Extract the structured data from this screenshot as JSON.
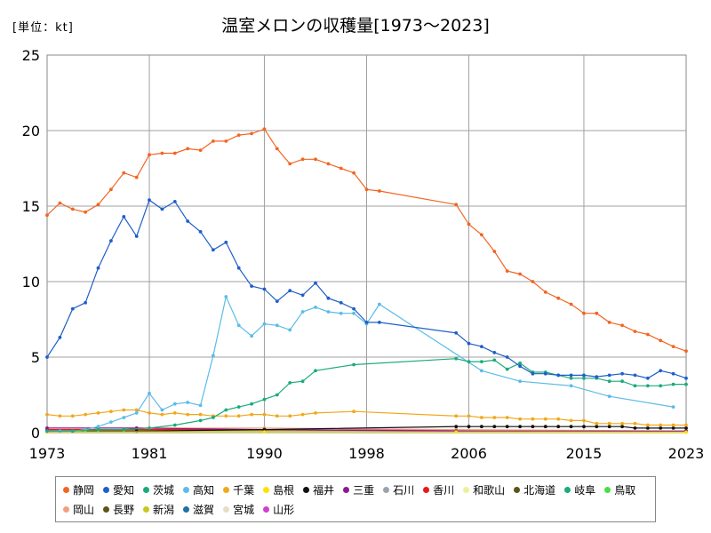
{
  "unit_label": "[単位：kt]",
  "chart_data": {
    "type": "line",
    "title": "温室メロンの収穫量[1973〜2023]",
    "xlabel": "",
    "ylabel": "",
    "xlim": [
      1973,
      2023
    ],
    "ylim": [
      0,
      25
    ],
    "x_ticks": [
      1973,
      1981,
      1990,
      1998,
      2006,
      2015,
      2023
    ],
    "y_ticks": [
      0,
      5,
      10,
      15,
      20,
      25
    ],
    "grid": true,
    "legend_position": "bottom",
    "series": [
      {
        "name": "静岡",
        "color": "#f26522",
        "x": [
          1973,
          1974,
          1975,
          1976,
          1977,
          1978,
          1979,
          1980,
          1981,
          1982,
          1983,
          1984,
          1985,
          1986,
          1987,
          1988,
          1989,
          1990,
          1991,
          1992,
          1993,
          1994,
          1995,
          1996,
          1997,
          1998,
          1999,
          2005,
          2006,
          2007,
          2008,
          2009,
          2010,
          2011,
          2012,
          2013,
          2014,
          2015,
          2016,
          2017,
          2018,
          2019,
          2020,
          2021,
          2022,
          2023
        ],
        "y": [
          14.4,
          15.2,
          14.8,
          14.6,
          15.1,
          16.1,
          17.2,
          16.9,
          18.4,
          18.5,
          18.5,
          18.8,
          18.7,
          19.3,
          19.3,
          19.7,
          19.8,
          20.1,
          18.8,
          17.8,
          18.1,
          18.1,
          17.8,
          17.5,
          17.2,
          16.1,
          16.0,
          15.1,
          13.8,
          13.1,
          12.0,
          10.7,
          10.5,
          10.0,
          9.3,
          8.9,
          8.5,
          7.9,
          7.9,
          7.3,
          7.1,
          6.7,
          6.5,
          6.1,
          5.7,
          5.4
        ]
      },
      {
        "name": "愛知",
        "color": "#1f5fc8",
        "x": [
          1973,
          1974,
          1975,
          1976,
          1977,
          1978,
          1979,
          1980,
          1981,
          1982,
          1983,
          1984,
          1985,
          1986,
          1987,
          1988,
          1989,
          1990,
          1991,
          1992,
          1993,
          1994,
          1995,
          1996,
          1997,
          1998,
          1999,
          2005,
          2006,
          2007,
          2008,
          2009,
          2010,
          2011,
          2012,
          2013,
          2014,
          2015,
          2016,
          2017,
          2018,
          2019,
          2020,
          2021,
          2022,
          2023
        ],
        "y": [
          5.0,
          6.3,
          8.2,
          8.6,
          10.9,
          12.7,
          14.3,
          13.0,
          15.4,
          14.8,
          15.3,
          14.0,
          13.3,
          12.1,
          12.6,
          10.9,
          9.7,
          9.5,
          8.7,
          9.4,
          9.1,
          9.9,
          8.9,
          8.6,
          8.2,
          7.3,
          7.3,
          6.6,
          5.9,
          5.7,
          5.3,
          5.0,
          4.4,
          3.9,
          3.9,
          3.8,
          3.8,
          3.8,
          3.7,
          3.8,
          3.9,
          3.8,
          3.6,
          4.1,
          3.9,
          3.6
        ]
      },
      {
        "name": "茨城",
        "color": "#1aab7a",
        "x": [
          1973,
          1975,
          1977,
          1979,
          1981,
          1983,
          1985,
          1986,
          1987,
          1988,
          1989,
          1990,
          1991,
          1992,
          1993,
          1994,
          1997,
          2005,
          2006,
          2007,
          2008,
          2009,
          2010,
          2011,
          2012,
          2013,
          2014,
          2015,
          2016,
          2017,
          2018,
          2019,
          2020,
          2021,
          2022,
          2023
        ],
        "y": [
          0.1,
          0.1,
          0.2,
          0.2,
          0.3,
          0.5,
          0.8,
          1.0,
          1.5,
          1.7,
          1.9,
          2.2,
          2.5,
          3.3,
          3.4,
          4.1,
          4.5,
          4.9,
          4.7,
          4.7,
          4.8,
          4.2,
          4.6,
          4.0,
          4.0,
          3.8,
          3.6,
          3.6,
          3.6,
          3.4,
          3.4,
          3.1,
          3.1,
          3.1,
          3.2,
          3.2
        ]
      },
      {
        "name": "高知",
        "color": "#5bbce8",
        "x": [
          1973,
          1974,
          1975,
          1976,
          1977,
          1978,
          1979,
          1980,
          1981,
          1982,
          1983,
          1984,
          1985,
          1986,
          1987,
          1988,
          1989,
          1990,
          1991,
          1992,
          1993,
          1994,
          1995,
          1996,
          1997,
          1998,
          1999,
          2007,
          2010,
          2014,
          2017,
          2022
        ],
        "y": [
          0.1,
          0.1,
          0.1,
          0.2,
          0.4,
          0.7,
          1.0,
          1.3,
          2.6,
          1.5,
          1.9,
          2.0,
          1.8,
          5.1,
          9.0,
          7.1,
          6.4,
          7.2,
          7.1,
          6.8,
          8.0,
          8.3,
          8.0,
          7.9,
          7.9,
          7.2,
          8.5,
          4.1,
          3.4,
          3.1,
          2.4,
          1.7
        ]
      },
      {
        "name": "千葉",
        "color": "#f0a81c",
        "x": [
          1973,
          1974,
          1975,
          1976,
          1977,
          1978,
          1979,
          1980,
          1981,
          1982,
          1983,
          1984,
          1985,
          1986,
          1987,
          1988,
          1989,
          1990,
          1991,
          1992,
          1993,
          1994,
          1997,
          2005,
          2006,
          2007,
          2008,
          2009,
          2010,
          2011,
          2012,
          2013,
          2014,
          2015,
          2016,
          2017,
          2018,
          2019,
          2020,
          2021,
          2022,
          2023
        ],
        "y": [
          1.2,
          1.1,
          1.1,
          1.2,
          1.3,
          1.4,
          1.5,
          1.5,
          1.3,
          1.2,
          1.3,
          1.2,
          1.2,
          1.1,
          1.1,
          1.1,
          1.2,
          1.2,
          1.1,
          1.1,
          1.2,
          1.3,
          1.4,
          1.1,
          1.1,
          1.0,
          1.0,
          1.0,
          0.9,
          0.9,
          0.9,
          0.9,
          0.8,
          0.8,
          0.6,
          0.6,
          0.6,
          0.6,
          0.5,
          0.5,
          0.5,
          0.5
        ]
      },
      {
        "name": "島根",
        "color": "#ffe100",
        "x": [
          1973,
          1990,
          2005,
          2023
        ],
        "y": [
          0.05,
          0.05,
          0.04,
          0.03
        ]
      },
      {
        "name": "福井",
        "color": "#111111",
        "x": [
          1973,
          1980,
          1990,
          2005,
          2006,
          2007,
          2008,
          2009,
          2010,
          2011,
          2012,
          2013,
          2014,
          2015,
          2016,
          2017,
          2018,
          2019,
          2020,
          2021,
          2022,
          2023
        ],
        "y": [
          0.1,
          0.1,
          0.2,
          0.4,
          0.4,
          0.4,
          0.4,
          0.4,
          0.4,
          0.4,
          0.4,
          0.4,
          0.4,
          0.4,
          0.4,
          0.4,
          0.4,
          0.3,
          0.3,
          0.3,
          0.3,
          0.3
        ]
      },
      {
        "name": "三重",
        "color": "#8b1a8b",
        "x": [
          1973,
          1980,
          1990,
          2005,
          2023
        ],
        "y": [
          0.3,
          0.3,
          0.2,
          0.1,
          0.1
        ]
      },
      {
        "name": "石川",
        "color": "#9aa4ae",
        "x": [
          1973,
          1990,
          2005,
          2023
        ],
        "y": [
          0.1,
          0.1,
          0.1,
          0.1
        ]
      },
      {
        "name": "香川",
        "color": "#e81919",
        "x": [
          1973,
          1980,
          1990,
          2005,
          2023
        ],
        "y": [
          0.2,
          0.2,
          0.2,
          0.1,
          0.1
        ]
      },
      {
        "name": "和歌山",
        "color": "#eef09b",
        "x": [
          1973,
          1990,
          2005,
          2023
        ],
        "y": [
          0.1,
          0.1,
          0.1,
          0.1
        ]
      },
      {
        "name": "北海道",
        "color": "#5c5418",
        "x": [
          1973,
          1990,
          2005,
          2023
        ],
        "y": [
          0.1,
          0.1,
          0.1,
          0.1
        ]
      },
      {
        "name": "岐阜",
        "color": "#1aab7a",
        "x": [
          1973,
          1990,
          2005,
          2023
        ],
        "y": [
          0.1,
          0.1,
          0.1,
          0.1
        ]
      },
      {
        "name": "鳥取",
        "color": "#44e044",
        "x": [
          1973,
          1990,
          2005,
          2023
        ],
        "y": [
          0.05,
          0.05,
          0.05,
          0.05
        ]
      },
      {
        "name": "岡山",
        "color": "#f0a080",
        "x": [
          1973,
          1980,
          1990,
          2005,
          2023
        ],
        "y": [
          0.3,
          0.3,
          0.3,
          0.2,
          0.1
        ]
      },
      {
        "name": "長野",
        "color": "#5c5418",
        "x": [
          1973,
          1990,
          2005,
          2023
        ],
        "y": [
          0.1,
          0.1,
          0.1,
          0.1
        ]
      },
      {
        "name": "新潟",
        "color": "#c8c81e",
        "x": [
          1973,
          1990,
          2005,
          2023
        ],
        "y": [
          0.1,
          0.1,
          0.1,
          0.1
        ]
      },
      {
        "name": "滋賀",
        "color": "#1f6fa8",
        "x": [
          1973,
          1990,
          2005,
          2023
        ],
        "y": [
          0.1,
          0.1,
          0.1,
          0.1
        ]
      },
      {
        "name": "宮城",
        "color": "#e8dcc4",
        "x": [
          1973,
          1990,
          2005,
          2023
        ],
        "y": [
          0.05,
          0.05,
          0.05,
          0.05
        ]
      },
      {
        "name": "山形",
        "color": "#d040d0",
        "x": [
          1973,
          1990,
          2005,
          2023
        ],
        "y": [
          0.2,
          0.2,
          0.15,
          0.1
        ]
      }
    ]
  }
}
